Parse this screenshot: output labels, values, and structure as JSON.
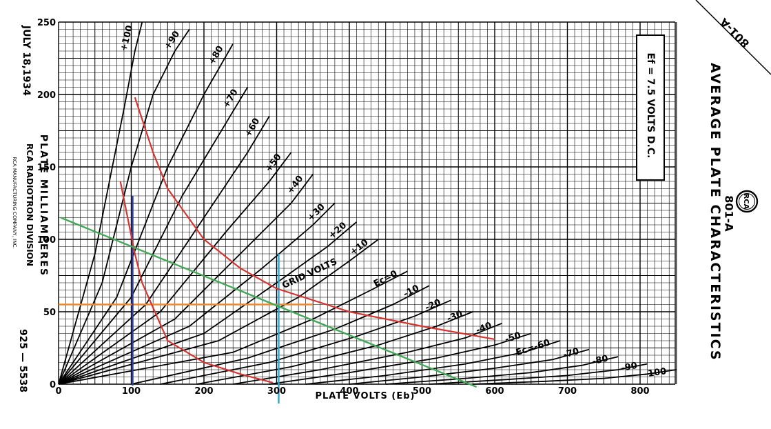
{
  "sheet": {
    "date": "JULY 18,1934",
    "division": "RCA RADIOTRON DIVISION",
    "company": "RCA MANUFACTURING COMPANY, INC.",
    "drawing_number": "925 — 5538",
    "corner_tube": "801-A",
    "logo_text": "RCA",
    "tube_type": "801-A",
    "title": "AVERAGE PLATE CHARACTERISTICS",
    "filament_note": "Ef = 7.5 VOLTS D.C."
  },
  "chart_data": {
    "type": "line",
    "title": "AVERAGE PLATE CHARACTERISTICS",
    "xlabel": "PLATE VOLTS (Eb)",
    "ylabel": "PLATE MILLIAMPERES",
    "xlim": [
      0,
      850
    ],
    "ylim": [
      0,
      250
    ],
    "x_ticks": [
      0,
      100,
      200,
      300,
      400,
      500,
      600,
      700,
      800
    ],
    "y_ticks": [
      0,
      50,
      100,
      150,
      200,
      250
    ],
    "grid": true,
    "legend": "none",
    "curve_family_label": "GRID VOLTS",
    "series": [
      {
        "label": "+100",
        "points": [
          [
            0,
            0
          ],
          [
            50,
            90
          ],
          [
            70,
            140
          ],
          [
            90,
            190
          ],
          [
            105,
            230
          ],
          [
            115,
            250
          ]
        ]
      },
      {
        "label": "+90",
        "points": [
          [
            0,
            0
          ],
          [
            60,
            70
          ],
          [
            100,
            150
          ],
          [
            130,
            200
          ],
          [
            160,
            230
          ],
          [
            180,
            245
          ]
        ]
      },
      {
        "label": "+80",
        "points": [
          [
            0,
            0
          ],
          [
            80,
            60
          ],
          [
            150,
            150
          ],
          [
            200,
            200
          ],
          [
            240,
            235
          ]
        ]
      },
      {
        "label": "+70",
        "points": [
          [
            0,
            0
          ],
          [
            100,
            60
          ],
          [
            170,
            130
          ],
          [
            230,
            180
          ],
          [
            260,
            205
          ]
        ]
      },
      {
        "label": "+60",
        "points": [
          [
            0,
            0
          ],
          [
            120,
            55
          ],
          [
            200,
            115
          ],
          [
            260,
            160
          ],
          [
            290,
            185
          ]
        ]
      },
      {
        "label": "+50",
        "points": [
          [
            0,
            0
          ],
          [
            140,
            50
          ],
          [
            230,
            105
          ],
          [
            290,
            140
          ],
          [
            320,
            160
          ]
        ]
      },
      {
        "label": "+40",
        "points": [
          [
            0,
            0
          ],
          [
            160,
            45
          ],
          [
            260,
            95
          ],
          [
            320,
            125
          ],
          [
            350,
            145
          ]
        ]
      },
      {
        "label": "+30",
        "points": [
          [
            0,
            0
          ],
          [
            180,
            40
          ],
          [
            280,
            80
          ],
          [
            350,
            110
          ],
          [
            380,
            125
          ]
        ]
      },
      {
        "label": "+20",
        "points": [
          [
            0,
            0
          ],
          [
            200,
            35
          ],
          [
            300,
            70
          ],
          [
            370,
            95
          ],
          [
            410,
            112
          ]
        ]
      },
      {
        "label": "+10",
        "points": [
          [
            0,
            0
          ],
          [
            220,
            30
          ],
          [
            330,
            60
          ],
          [
            400,
            85
          ],
          [
            440,
            100
          ]
        ]
      },
      {
        "label": "Ec=0",
        "points": [
          [
            0,
            0
          ],
          [
            240,
            22
          ],
          [
            350,
            45
          ],
          [
            430,
            65
          ],
          [
            480,
            78
          ]
        ]
      },
      {
        "label": "-10",
        "points": [
          [
            100,
            0
          ],
          [
            260,
            18
          ],
          [
            380,
            38
          ],
          [
            460,
            55
          ],
          [
            510,
            68
          ]
        ]
      },
      {
        "label": "-20",
        "points": [
          [
            140,
            0
          ],
          [
            290,
            15
          ],
          [
            410,
            33
          ],
          [
            490,
            47
          ],
          [
            540,
            58
          ]
        ]
      },
      {
        "label": "-30",
        "points": [
          [
            190,
            0
          ],
          [
            320,
            12
          ],
          [
            440,
            27
          ],
          [
            520,
            40
          ],
          [
            570,
            50
          ]
        ]
      },
      {
        "label": "-40",
        "points": [
          [
            240,
            0
          ],
          [
            360,
            10
          ],
          [
            480,
            22
          ],
          [
            560,
            32
          ],
          [
            610,
            42
          ]
        ]
      },
      {
        "label": "-50",
        "points": [
          [
            290,
            0
          ],
          [
            400,
            8
          ],
          [
            520,
            18
          ],
          [
            600,
            27
          ],
          [
            650,
            35
          ]
        ]
      },
      {
        "label": "Ec=-60",
        "points": [
          [
            340,
            0
          ],
          [
            450,
            6
          ],
          [
            560,
            14
          ],
          [
            640,
            22
          ],
          [
            690,
            30
          ]
        ]
      },
      {
        "label": "-70",
        "points": [
          [
            400,
            0
          ],
          [
            500,
            5
          ],
          [
            600,
            11
          ],
          [
            680,
            17
          ],
          [
            730,
            24
          ]
        ]
      },
      {
        "label": "-80",
        "points": [
          [
            450,
            0
          ],
          [
            560,
            4
          ],
          [
            650,
            8
          ],
          [
            720,
            13
          ],
          [
            770,
            19
          ]
        ]
      },
      {
        "label": "-90",
        "points": [
          [
            510,
            0
          ],
          [
            610,
            3
          ],
          [
            700,
            6
          ],
          [
            770,
            10
          ],
          [
            810,
            14
          ]
        ]
      },
      {
        "label": "-100",
        "points": [
          [
            570,
            0
          ],
          [
            670,
            2
          ],
          [
            750,
            4
          ],
          [
            810,
            7
          ],
          [
            850,
            10
          ]
        ]
      }
    ],
    "annotations": {
      "red_curve_upper": [
        [
          105,
          198
        ],
        [
          130,
          160
        ],
        [
          150,
          135
        ],
        [
          200,
          100
        ],
        [
          250,
          80
        ],
        [
          300,
          66
        ],
        [
          400,
          50
        ],
        [
          500,
          40
        ],
        [
          600,
          31
        ]
      ],
      "red_curve_lower": [
        [
          85,
          140
        ],
        [
          105,
          90
        ],
        [
          115,
          70
        ],
        [
          150,
          30
        ],
        [
          200,
          15
        ],
        [
          250,
          7
        ],
        [
          295,
          1
        ]
      ],
      "load_line": [
        [
          0,
          115
        ],
        [
          100,
          93
        ],
        [
          200,
          73
        ],
        [
          300,
          55
        ],
        [
          400,
          36
        ],
        [
          500,
          17
        ],
        [
          575,
          0
        ]
      ],
      "operating_current_ma": 55,
      "vertical_marker_1_volts": 100,
      "vertical_marker_2_volts": 300
    }
  },
  "colors": {
    "ink": "#000000",
    "red_curve": "#d8342f",
    "load_line": "#43a957",
    "orange_line": "#f08a2a",
    "blue_line": "#2a3aa0",
    "cyan_line": "#2aa6cf"
  }
}
